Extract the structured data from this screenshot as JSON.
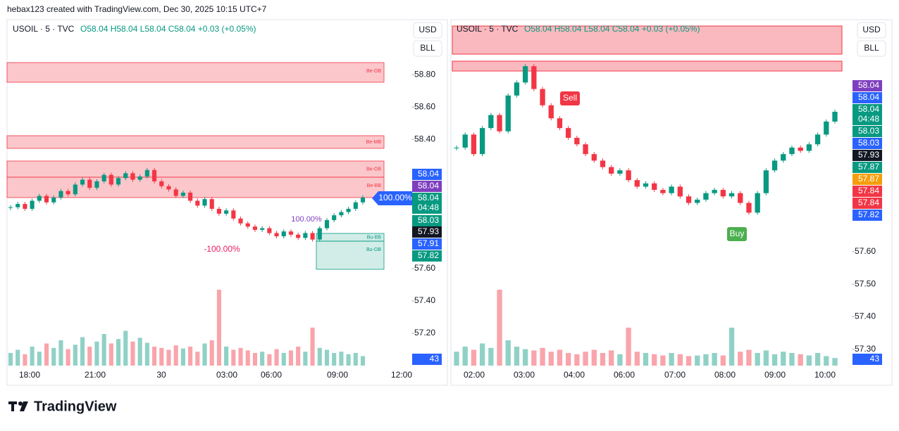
{
  "attribution": "hebax123 created with TradingView.com, Dec 30, 2025 10:15 UTC+7",
  "logo": "TradingView",
  "chart_data": [
    {
      "type": "candlestick",
      "title": "USOIL · 5 · TVC",
      "ohlc": "O58.04 H58.04 L58.04 C58.04 +0.03 (+0.05%)",
      "buttons": [
        "USD",
        "BLL"
      ],
      "ylim": [
        57.0,
        59.14
      ],
      "yticks": [
        {
          "value": 58.8,
          "label": "58.80"
        },
        {
          "value": 58.6,
          "label": "58.60"
        },
        {
          "value": 58.4,
          "label": "58.40"
        },
        {
          "value": 57.6,
          "label": "57.60"
        },
        {
          "value": 57.4,
          "label": "57.40"
        },
        {
          "value": 57.2,
          "label": "57.20"
        }
      ],
      "time_labels": [
        "18:00",
        "21:00",
        "30",
        "03:00",
        "06:00",
        "09:00",
        "12:00"
      ],
      "closes": [
        57.98,
        58.0,
        57.97,
        58.02,
        58.05,
        58.01,
        58.04,
        58.08,
        58.06,
        58.12,
        58.15,
        58.1,
        58.14,
        58.18,
        58.12,
        58.16,
        58.19,
        58.15,
        58.17,
        58.21,
        58.14,
        58.11,
        58.09,
        58.05,
        58.07,
        58.02,
        57.99,
        58.03,
        57.97,
        57.94,
        57.96,
        57.91,
        57.88,
        57.86,
        57.84,
        57.85,
        57.82,
        57.8,
        57.83,
        57.81,
        57.79,
        57.82,
        57.78,
        57.85,
        57.9,
        57.93,
        57.95,
        57.97,
        58.01,
        58.04
      ],
      "volumes": [
        20,
        25,
        18,
        30,
        22,
        35,
        28,
        40,
        26,
        33,
        45,
        30,
        38,
        50,
        35,
        42,
        55,
        38,
        44,
        36,
        30,
        28,
        25,
        32,
        27,
        30,
        22,
        35,
        40,
        120,
        30,
        25,
        28,
        24,
        20,
        22,
        18,
        26,
        20,
        24,
        30,
        22,
        60,
        28,
        25,
        20,
        22,
        18,
        20,
        15
      ],
      "price_tags": [
        {
          "label": "58.04",
          "color": "#2962ff"
        },
        {
          "label": "58.04",
          "color": "#7e3fbf"
        },
        {
          "label": "58.04",
          "sub": "04:48",
          "color": "#089981"
        },
        {
          "label": "58.03",
          "color": "#089981"
        },
        {
          "label": "57.93",
          "color": "#131722"
        },
        {
          "label": "57.91",
          "color": "#2962ff"
        },
        {
          "label": "57.82",
          "color": "#089981"
        },
        {
          "label": "43",
          "color": "#2962ff"
        }
      ],
      "zones": [
        "Be-OB",
        "Be-MB",
        "Be-OB",
        "Be-BB",
        "Bu-BB",
        "Bu-OB"
      ],
      "annotations": [
        "100.00%",
        "-100.00%",
        "100.00%"
      ]
    },
    {
      "type": "candlestick",
      "title": "USOIL · 5 · TVC",
      "ohlc": "O58.04 H58.04 L58.04 C58.04 +0.03 (+0.05%)",
      "buttons": [
        "USD",
        "BLL"
      ],
      "ylim": [
        57.25,
        58.313
      ],
      "yticks": [
        {
          "value": 57.6,
          "label": "57.60"
        },
        {
          "value": 57.5,
          "label": "57.50"
        },
        {
          "value": 57.4,
          "label": "57.40"
        },
        {
          "value": 57.3,
          "label": "57.30"
        }
      ],
      "time_labels": [
        "02:00",
        "03:00",
        "04:00",
        "06:00",
        "07:00",
        "08:00",
        "09:00",
        "10:00"
      ],
      "closes": [
        57.92,
        57.96,
        57.9,
        57.98,
        58.02,
        57.97,
        58.08,
        58.12,
        58.17,
        58.1,
        58.05,
        58.01,
        57.98,
        57.95,
        57.93,
        57.9,
        57.88,
        57.86,
        57.84,
        57.85,
        57.82,
        57.8,
        57.81,
        57.79,
        57.78,
        57.8,
        57.77,
        57.75,
        57.76,
        57.78,
        57.79,
        57.77,
        57.78,
        57.75,
        57.72,
        57.78,
        57.85,
        57.88,
        57.9,
        57.92,
        57.91,
        57.93,
        57.96,
        58.0,
        58.03
      ],
      "volumes": [
        22,
        30,
        25,
        35,
        28,
        120,
        40,
        30,
        26,
        24,
        28,
        22,
        25,
        20,
        18,
        22,
        25,
        20,
        24,
        18,
        60,
        22,
        20,
        18,
        16,
        20,
        18,
        15,
        16,
        18,
        20,
        16,
        60,
        22,
        25,
        20,
        24,
        18,
        22,
        20,
        18,
        16,
        20,
        15,
        12
      ],
      "price_tags": [
        {
          "label": "58.04",
          "color": "#7e3fbf"
        },
        {
          "label": "58.04",
          "color": "#2962ff"
        },
        {
          "label": "58.04",
          "sub": "04:48",
          "color": "#089981"
        },
        {
          "label": "58.03",
          "color": "#089981"
        },
        {
          "label": "58.03",
          "color": "#2962ff"
        },
        {
          "label": "57.93",
          "color": "#131722"
        },
        {
          "label": "57.87",
          "color": "#089981"
        },
        {
          "label": "57.87",
          "color": "#f59e0b"
        },
        {
          "label": "57.84",
          "color": "#f23645"
        },
        {
          "label": "57.84",
          "color": "#f23645"
        },
        {
          "label": "57.82",
          "color": "#2962ff"
        },
        {
          "label": "43",
          "color": "#2962ff"
        }
      ],
      "signals": [
        "Sell",
        "Buy"
      ]
    }
  ]
}
